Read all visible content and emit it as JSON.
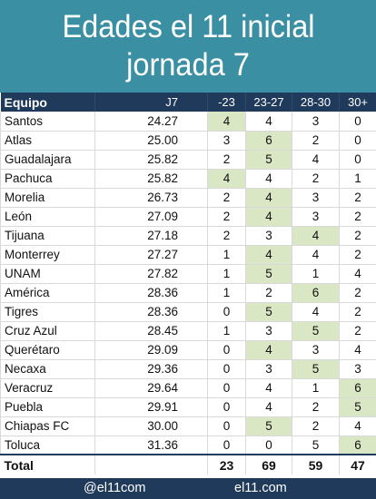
{
  "header": {
    "title_line1": "Edades el 11 inicial",
    "title_line2": "jornada 7"
  },
  "chart_data": {
    "type": "table",
    "columns": [
      "Equipo",
      "J7",
      "-23",
      "23-27",
      "28-30",
      "30+"
    ],
    "rows": [
      {
        "team": "Santos",
        "avg": "24.27",
        "counts": [
          4,
          4,
          3,
          0
        ],
        "hl": 0
      },
      {
        "team": "Atlas",
        "avg": "25.00",
        "counts": [
          3,
          6,
          2,
          0
        ],
        "hl": 1
      },
      {
        "team": "Guadalajara",
        "avg": "25.82",
        "counts": [
          2,
          5,
          4,
          0
        ],
        "hl": 1
      },
      {
        "team": "Pachuca",
        "avg": "25.82",
        "counts": [
          4,
          4,
          2,
          1
        ],
        "hl": 0
      },
      {
        "team": "Morelia",
        "avg": "26.73",
        "counts": [
          2,
          4,
          3,
          2
        ],
        "hl": 1
      },
      {
        "team": "León",
        "avg": "27.09",
        "counts": [
          2,
          4,
          3,
          2
        ],
        "hl": 1
      },
      {
        "team": "Tijuana",
        "avg": "27.18",
        "counts": [
          2,
          3,
          4,
          2
        ],
        "hl": 2
      },
      {
        "team": "Monterrey",
        "avg": "27.27",
        "counts": [
          1,
          4,
          4,
          2
        ],
        "hl": 1
      },
      {
        "team": "UNAM",
        "avg": "27.82",
        "counts": [
          1,
          5,
          1,
          4
        ],
        "hl": 1
      },
      {
        "team": "América",
        "avg": "28.36",
        "counts": [
          1,
          2,
          6,
          2
        ],
        "hl": 2
      },
      {
        "team": "Tigres",
        "avg": "28.36",
        "counts": [
          0,
          5,
          4,
          2
        ],
        "hl": 1
      },
      {
        "team": "Cruz Azul",
        "avg": "28.45",
        "counts": [
          1,
          3,
          5,
          2
        ],
        "hl": 2
      },
      {
        "team": "Querétaro",
        "avg": "29.09",
        "counts": [
          0,
          4,
          3,
          4
        ],
        "hl": 1
      },
      {
        "team": "Necaxa",
        "avg": "29.36",
        "counts": [
          0,
          3,
          5,
          3
        ],
        "hl": 2
      },
      {
        "team": "Veracruz",
        "avg": "29.64",
        "counts": [
          0,
          4,
          1,
          6
        ],
        "hl": 3
      },
      {
        "team": "Puebla",
        "avg": "29.91",
        "counts": [
          0,
          4,
          2,
          5
        ],
        "hl": 3
      },
      {
        "team": "Chiapas FC",
        "avg": "30.00",
        "counts": [
          0,
          5,
          2,
          4
        ],
        "hl": 1
      },
      {
        "team": "Toluca",
        "avg": "31.36",
        "counts": [
          0,
          0,
          5,
          6
        ],
        "hl": 3
      }
    ],
    "total": {
      "label": "Total",
      "counts": [
        23,
        69,
        59,
        47
      ]
    }
  },
  "footer": {
    "handle": "@el11com",
    "site": "el11.com"
  },
  "colors": {
    "banner": "#3a8fa3",
    "header_row": "#1f3a5a",
    "highlight": "#d9e7c4"
  }
}
